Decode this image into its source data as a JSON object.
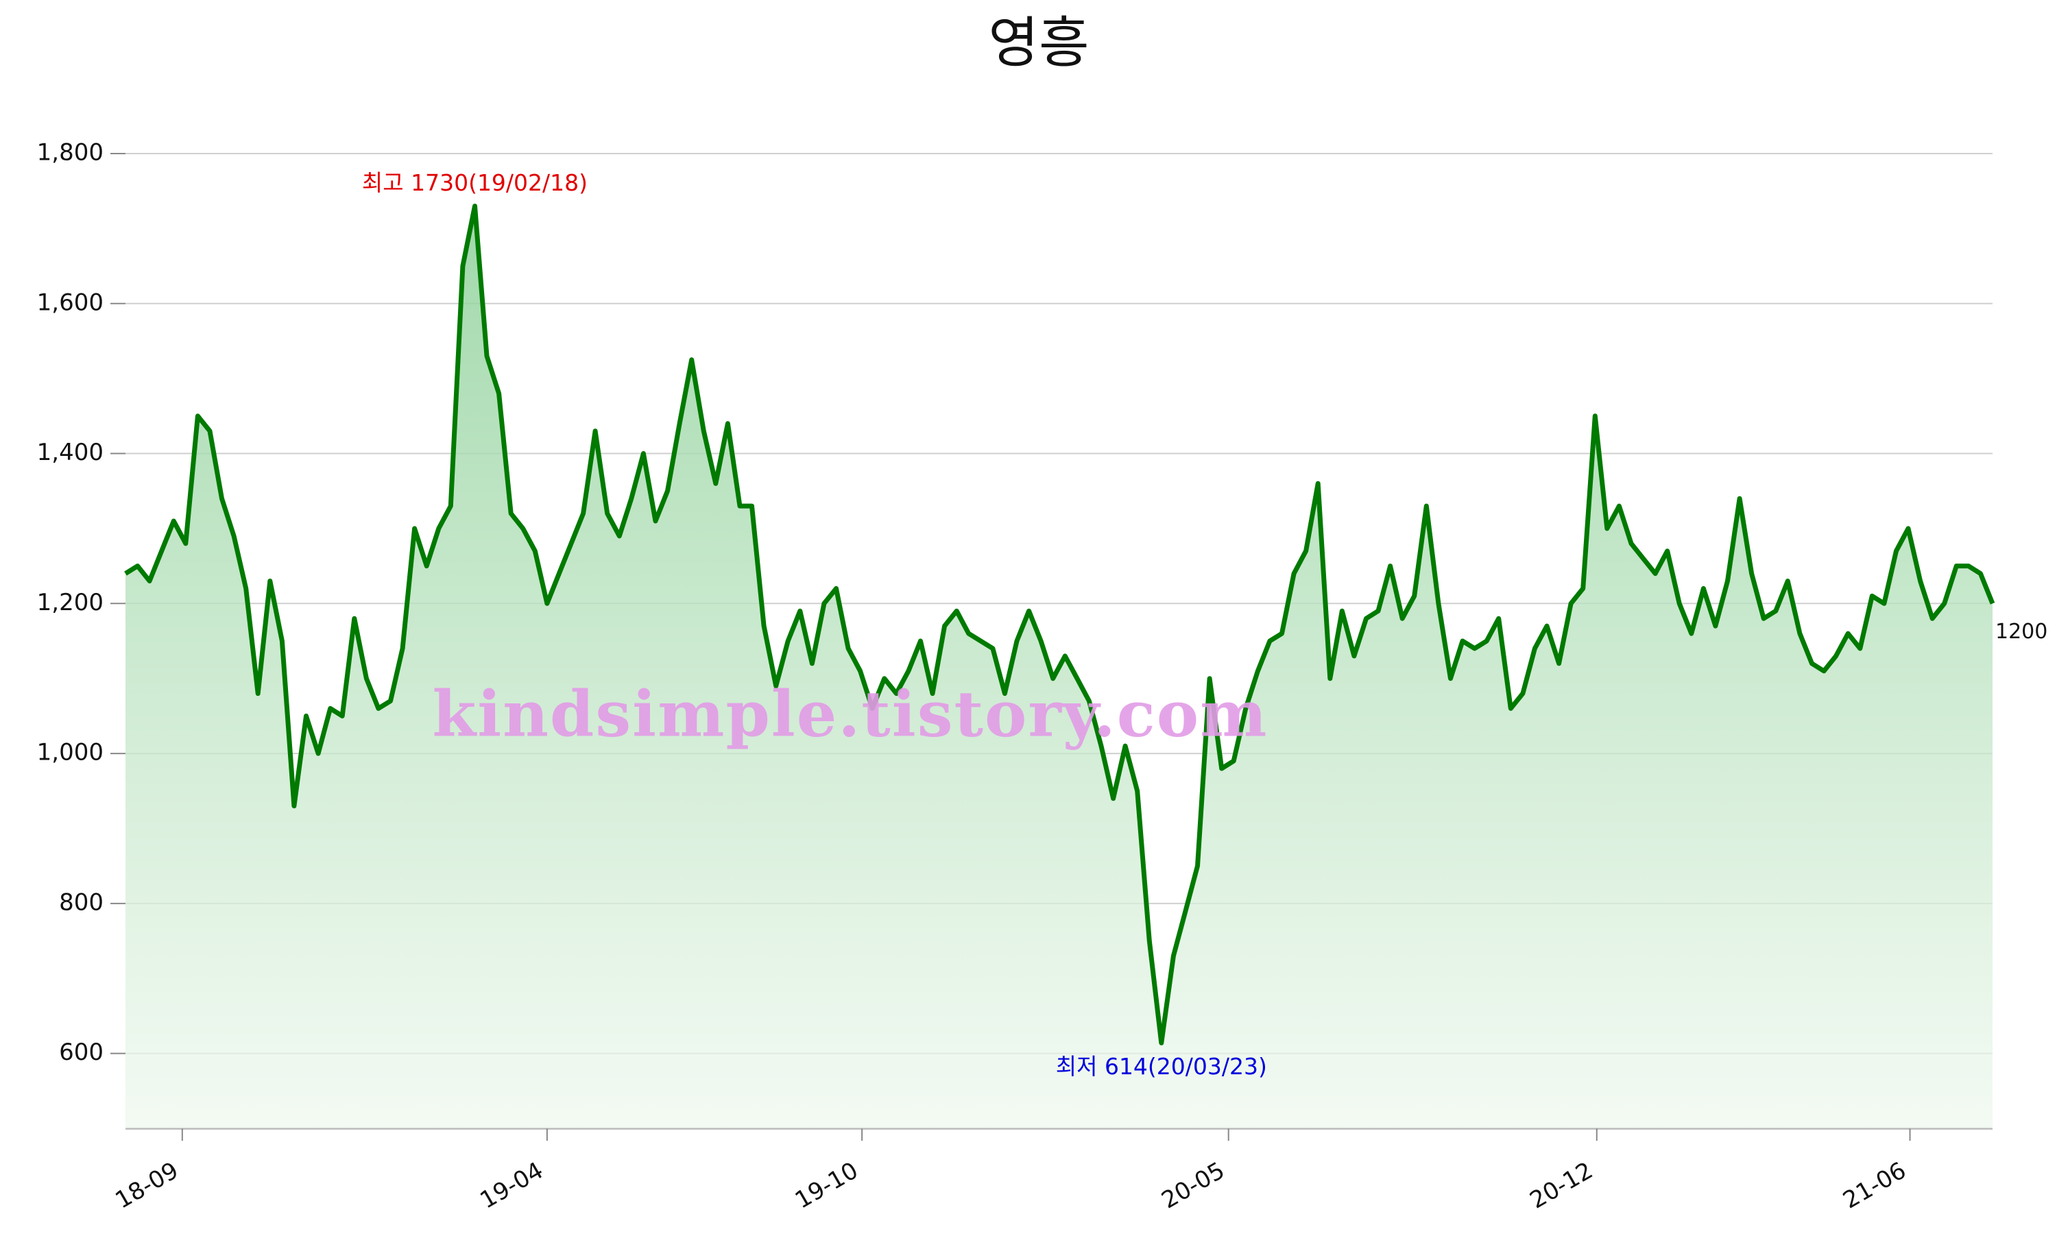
{
  "chart_data": {
    "type": "line",
    "title": "영흥",
    "x": [
      "18/07/30",
      "18/08/06",
      "18/08/13",
      "18/08/20",
      "18/08/27",
      "18/09/03",
      "18/09/10",
      "18/09/17",
      "18/09/24",
      "18/10/01",
      "18/10/08",
      "18/10/15",
      "18/10/22",
      "18/10/29",
      "18/11/05",
      "18/11/12",
      "18/11/19",
      "18/11/26",
      "18/12/03",
      "18/12/10",
      "18/12/17",
      "18/12/24",
      "18/12/31",
      "19/01/07",
      "19/01/14",
      "19/01/21",
      "19/01/28",
      "19/02/04",
      "19/02/11",
      "19/02/18",
      "19/02/25",
      "19/03/04",
      "19/03/11",
      "19/03/18",
      "19/03/25",
      "19/04/01",
      "19/04/08",
      "19/04/15",
      "19/04/22",
      "19/04/29",
      "19/05/06",
      "19/05/13",
      "19/05/20",
      "19/05/27",
      "19/06/03",
      "19/06/10",
      "19/06/17",
      "19/06/24",
      "19/07/01",
      "19/07/08",
      "19/07/15",
      "19/07/22",
      "19/07/29",
      "19/08/05",
      "19/08/12",
      "19/08/19",
      "19/08/26",
      "19/09/02",
      "19/09/09",
      "19/09/16",
      "19/09/23",
      "19/09/30",
      "19/10/07",
      "19/10/14",
      "19/10/21",
      "19/10/28",
      "19/11/04",
      "19/11/11",
      "19/11/18",
      "19/11/25",
      "19/12/02",
      "19/12/09",
      "19/12/16",
      "19/12/23",
      "19/12/30",
      "20/01/06",
      "20/01/13",
      "20/01/20",
      "20/01/27",
      "20/02/03",
      "20/02/10",
      "20/02/17",
      "20/02/24",
      "20/03/02",
      "20/03/09",
      "20/03/16",
      "20/03/23",
      "20/03/30",
      "20/04/06",
      "20/04/13",
      "20/04/20",
      "20/04/27",
      "20/05/04",
      "20/05/11",
      "20/05/18",
      "20/05/25",
      "20/06/01",
      "20/06/08",
      "20/06/15",
      "20/06/22",
      "20/06/29",
      "20/07/06",
      "20/07/13",
      "20/07/20",
      "20/07/27",
      "20/08/03",
      "20/08/10",
      "20/08/17",
      "20/08/24",
      "20/08/31",
      "20/09/07",
      "20/09/14",
      "20/09/21",
      "20/09/28",
      "20/10/05",
      "20/10/12",
      "20/10/19",
      "20/10/26",
      "20/11/02",
      "20/11/09",
      "20/11/16",
      "20/11/23",
      "20/11/30",
      "20/12/07",
      "20/12/14",
      "20/12/21",
      "20/12/28",
      "21/01/04",
      "21/01/11",
      "21/01/18",
      "21/01/25",
      "21/02/01",
      "21/02/08",
      "21/02/15",
      "21/02/22",
      "21/03/01",
      "21/03/08",
      "21/03/15",
      "21/03/22",
      "21/03/29",
      "21/04/05",
      "21/04/12",
      "21/04/19",
      "21/04/26",
      "21/05/03",
      "21/05/10",
      "21/05/17",
      "21/05/24",
      "21/05/31",
      "21/06/07",
      "21/06/14",
      "21/06/21",
      "21/06/28",
      "21/07/05",
      "21/07/12",
      "21/07/19"
    ],
    "series": [
      {
        "color": "#007a00",
        "values": [
          1240,
          1250,
          1230,
          1270,
          1310,
          1280,
          1450,
          1430,
          1340,
          1290,
          1220,
          1080,
          1230,
          1150,
          930,
          1050,
          1000,
          1060,
          1050,
          1180,
          1100,
          1060,
          1070,
          1140,
          1300,
          1250,
          1300,
          1330,
          1650,
          1730,
          1530,
          1480,
          1320,
          1300,
          1270,
          1200,
          1240,
          1280,
          1320,
          1430,
          1320,
          1290,
          1340,
          1400,
          1310,
          1350,
          1440,
          1525,
          1430,
          1360,
          1440,
          1330,
          1330,
          1170,
          1090,
          1150,
          1190,
          1120,
          1200,
          1220,
          1140,
          1110,
          1060,
          1100,
          1080,
          1110,
          1150,
          1080,
          1170,
          1190,
          1160,
          1150,
          1140,
          1080,
          1150,
          1190,
          1150,
          1100,
          1130,
          1100,
          1070,
          1010,
          940,
          1010,
          950,
          750,
          614,
          730,
          790,
          850,
          1100,
          980,
          990,
          1060,
          1110,
          1150,
          1160,
          1240,
          1270,
          1360,
          1100,
          1190,
          1130,
          1180,
          1190,
          1250,
          1180,
          1210,
          1330,
          1200,
          1100,
          1150,
          1140,
          1150,
          1180,
          1060,
          1080,
          1140,
          1170,
          1120,
          1200,
          1220,
          1450,
          1300,
          1330,
          1280,
          1260,
          1240,
          1270,
          1200,
          1160,
          1220,
          1170,
          1230,
          1340,
          1240,
          1180,
          1190,
          1230,
          1160,
          1120,
          1110,
          1130,
          1160,
          1140,
          1210,
          1200,
          1270,
          1300,
          1230,
          1180,
          1200,
          1250,
          1250,
          1240,
          1200
        ]
      }
    ],
    "label_last": true,
    "xlim": [
      "18/07/30",
      "21/07/19"
    ],
    "xticks": [
      {
        "value": "18/09/01",
        "label": "18-09"
      },
      {
        "value": "19/04/01",
        "label": "19-04"
      },
      {
        "value": "19/10/01",
        "label": "19-10"
      },
      {
        "value": "20/05/01",
        "label": "20-05"
      },
      {
        "value": "20/12/01",
        "label": "20-12"
      },
      {
        "value": "21/06/01",
        "label": "21-06"
      }
    ],
    "ylim": [
      500,
      1800
    ],
    "yticks": [
      600,
      800,
      {
        "value": 1000,
        "label": "1,000"
      },
      {
        "value": 1200,
        "label": "1,200"
      },
      {
        "value": 1400,
        "label": "1,400"
      },
      {
        "value": 1600,
        "label": "1,600"
      },
      {
        "value": 1800,
        "label": "1,800"
      }
    ],
    "grid": true,
    "annotations": [
      {
        "text": "최고 1730(19/02/18)",
        "x": "19/02/18",
        "y": 1730,
        "color": "#e00000",
        "position": "above"
      },
      {
        "text": "최저 614(20/03/23)",
        "x": "20/03/23",
        "y": 614,
        "color": "#0000dd",
        "position": "below"
      }
    ],
    "watermark": "kindsimple.tistory.com"
  }
}
